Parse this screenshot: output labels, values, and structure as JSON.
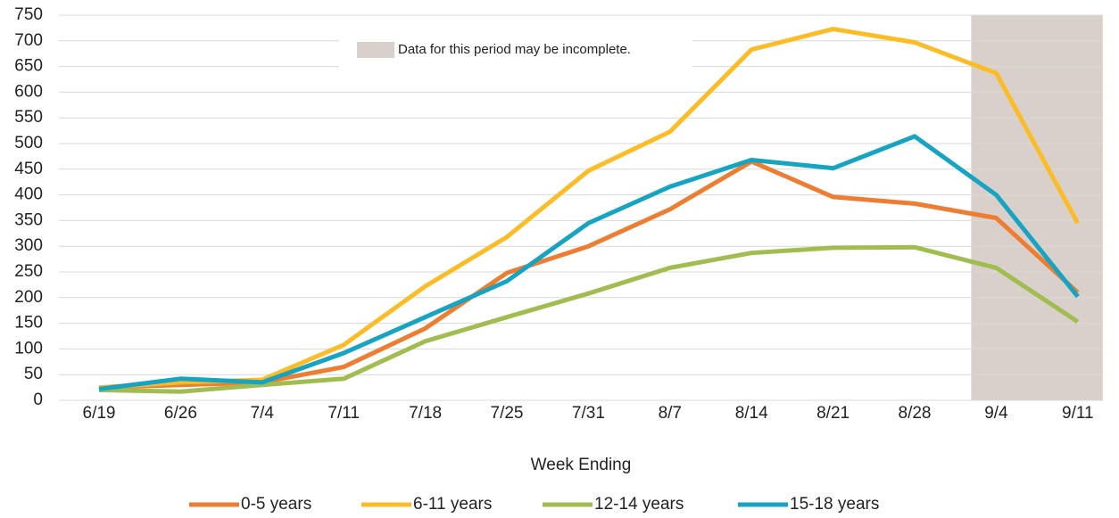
{
  "chart_data": {
    "type": "line",
    "x_label": "Week Ending",
    "categories": [
      "6/19",
      "6/26",
      "7/4",
      "7/11",
      "7/18",
      "7/25",
      "7/31",
      "8/7",
      "8/14",
      "8/21",
      "8/28",
      "9/4",
      "9/11"
    ],
    "series": [
      {
        "name": "0-5 years",
        "color": "#ed7d31",
        "values": [
          25,
          30,
          35,
          65,
          140,
          248,
          300,
          372,
          465,
          396,
          383,
          355,
          210
        ]
      },
      {
        "name": "6-11 years",
        "color": "#fbbc26",
        "values": [
          25,
          35,
          40,
          108,
          222,
          318,
          447,
          523,
          683,
          723,
          697,
          637,
          345
        ]
      },
      {
        "name": "12-14 years",
        "color": "#a1bd4f",
        "values": [
          20,
          17,
          30,
          42,
          115,
          162,
          208,
          258,
          287,
          297,
          298,
          258,
          153
        ]
      },
      {
        "name": "15-18 years",
        "color": "#16a4c2",
        "values": [
          22,
          42,
          35,
          92,
          162,
          232,
          345,
          416,
          468,
          452,
          514,
          400,
          202
        ]
      }
    ],
    "highlight": {
      "from": "9/4",
      "to": "9/11",
      "color": "#d9d0cb",
      "label": "Data for this period may be incomplete."
    },
    "ylim": [
      0,
      750
    ],
    "yticks": [
      0,
      50,
      100,
      150,
      200,
      250,
      300,
      350,
      400,
      450,
      500,
      550,
      600,
      650,
      700,
      750
    ],
    "grid": true,
    "legend": "bottom"
  }
}
